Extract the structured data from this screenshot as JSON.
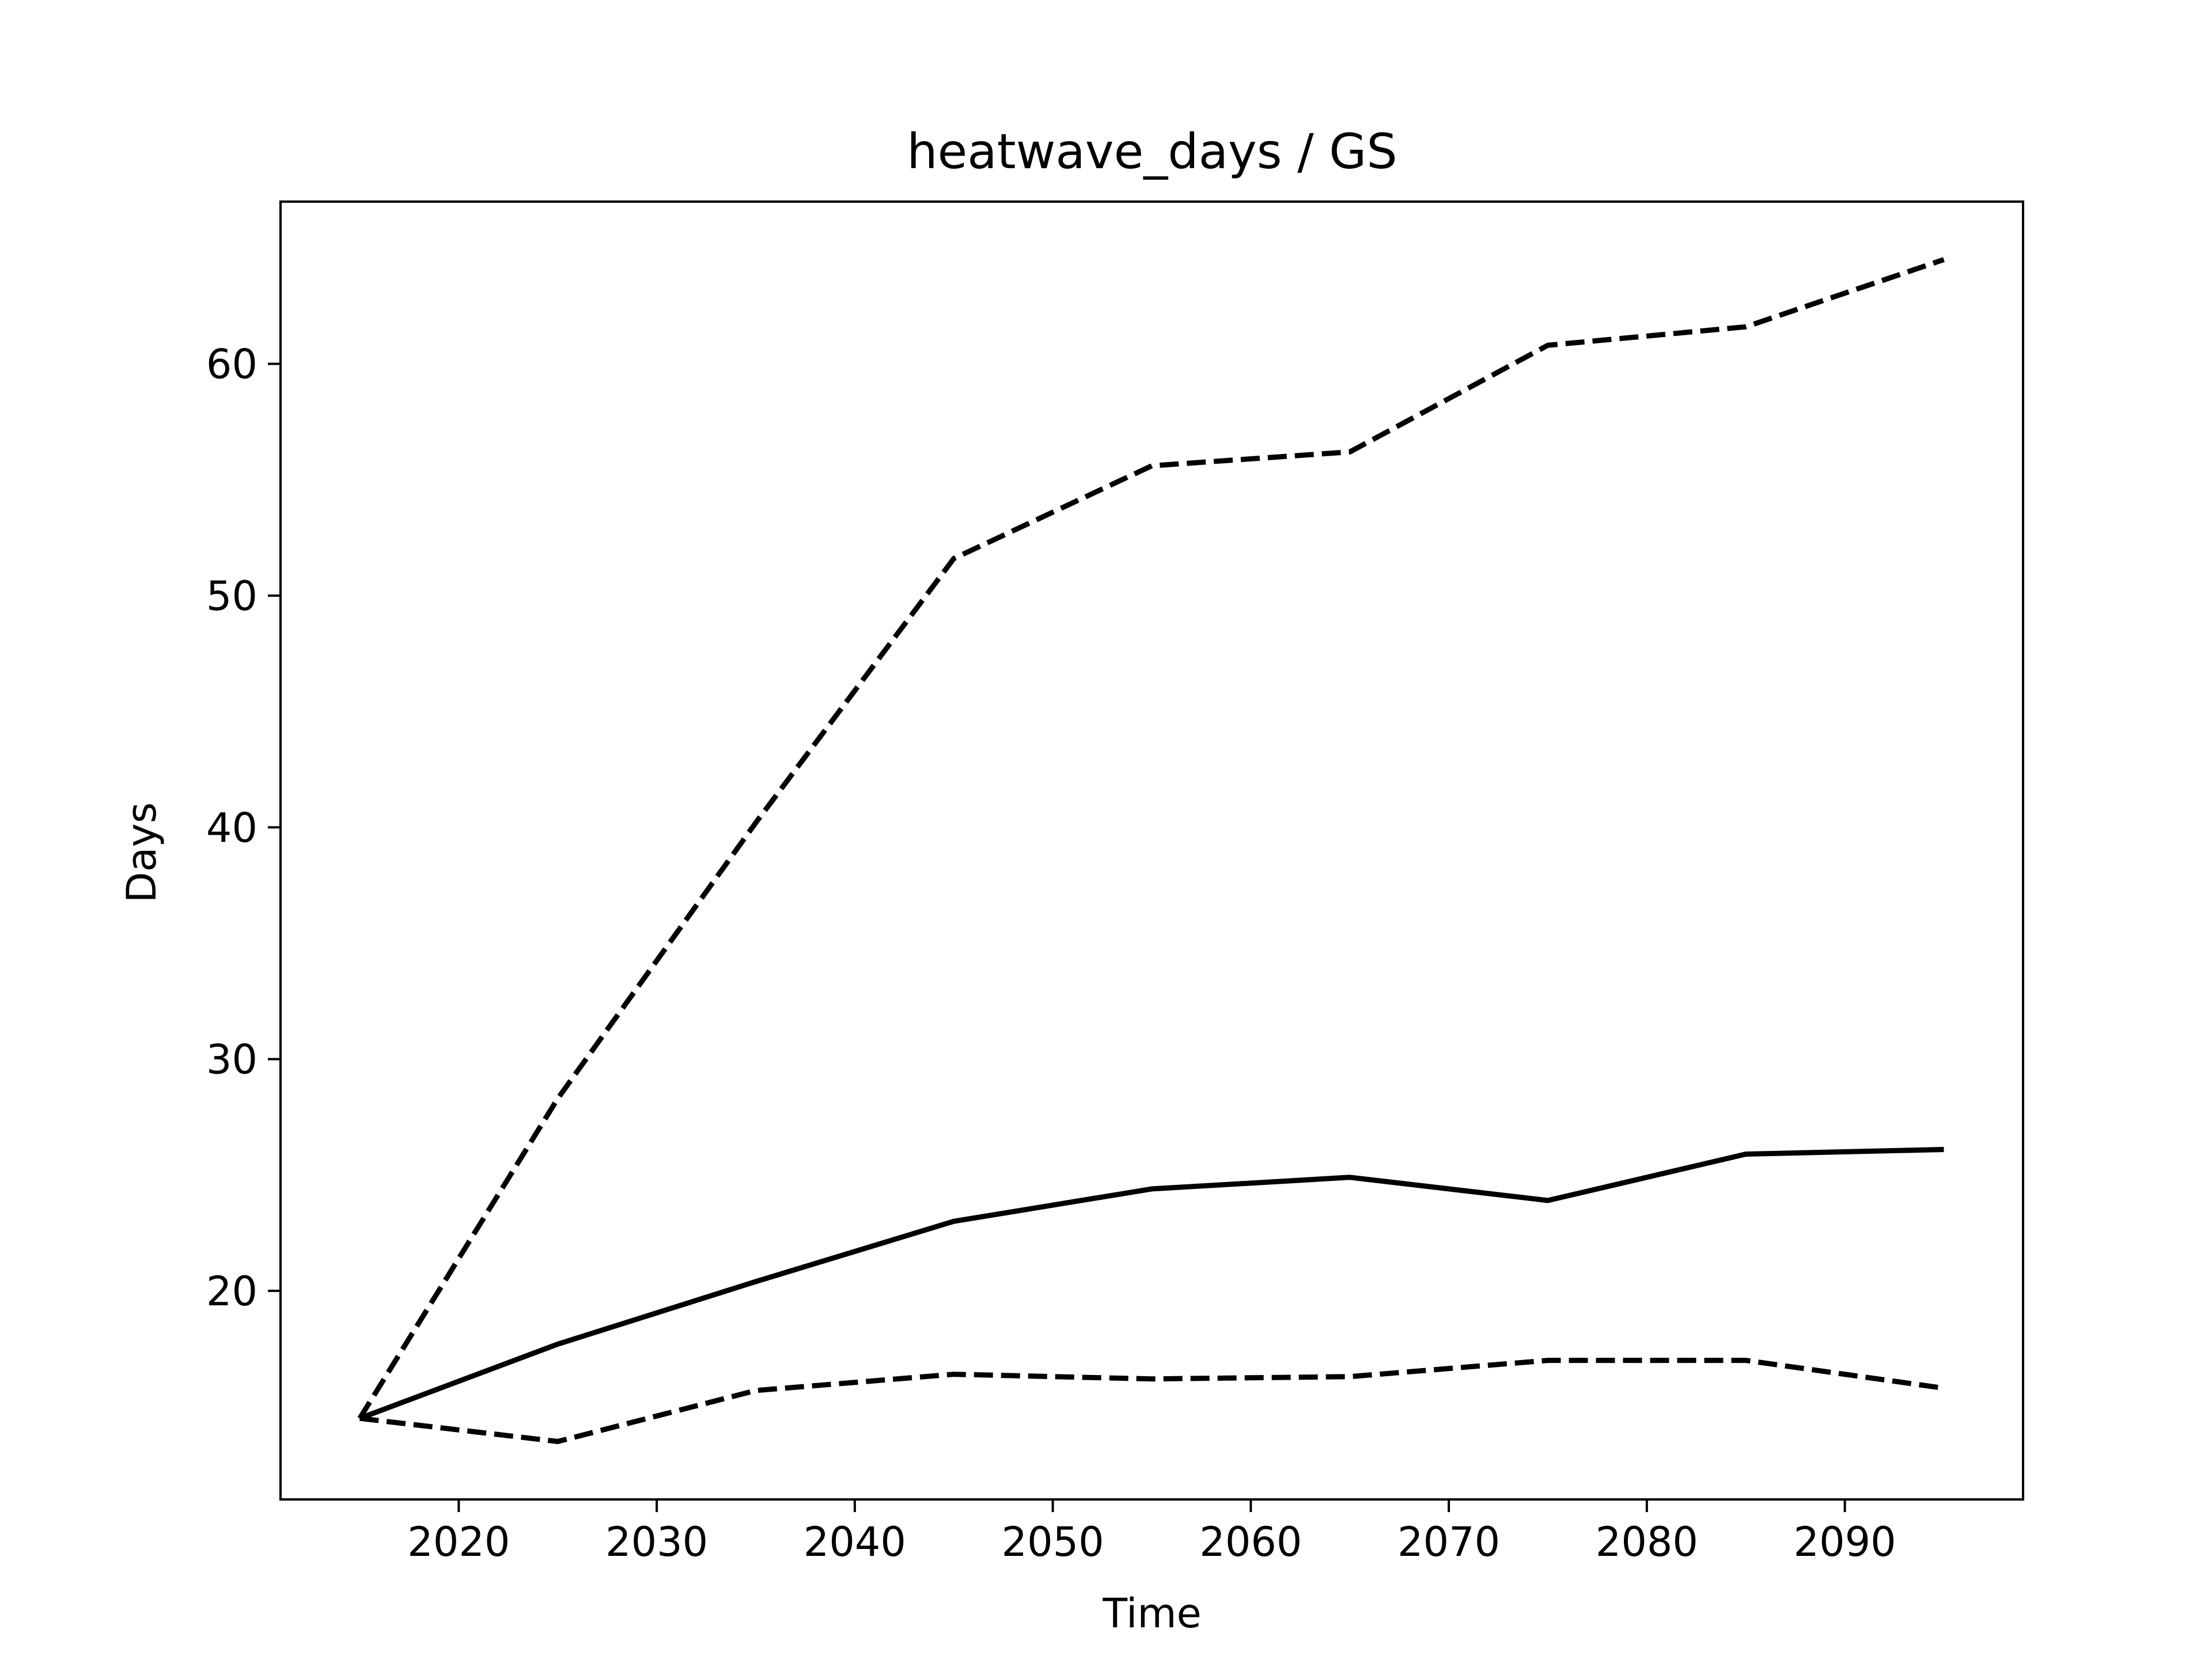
{
  "chart_data": {
    "type": "line",
    "title": "heatwave_days / GS",
    "xlabel": "Time",
    "ylabel": "Days",
    "xlim": [
      2011,
      2099
    ],
    "ylim": [
      11,
      67
    ],
    "xticks": [
      2020,
      2030,
      2040,
      2050,
      2060,
      2070,
      2080,
      2090
    ],
    "yticks": [
      20,
      30,
      40,
      50,
      60
    ],
    "grid": false,
    "legend": "none",
    "x": [
      2015,
      2025,
      2035,
      2045,
      2055,
      2065,
      2075,
      2085,
      2095
    ],
    "series": [
      {
        "style": "dashed",
        "color": "#000000",
        "values": [
          14.5,
          28.3,
          40.2,
          51.6,
          55.6,
          56.2,
          60.8,
          61.6,
          64.5
        ]
      },
      {
        "style": "solid",
        "color": "#000000",
        "values": [
          14.5,
          17.7,
          20.4,
          23.0,
          24.4,
          24.9,
          23.9,
          25.9,
          26.1
        ]
      },
      {
        "style": "dashed",
        "color": "#000000",
        "values": [
          14.5,
          13.5,
          15.7,
          16.4,
          16.2,
          16.3,
          17.0,
          17.0,
          15.8
        ]
      }
    ]
  }
}
